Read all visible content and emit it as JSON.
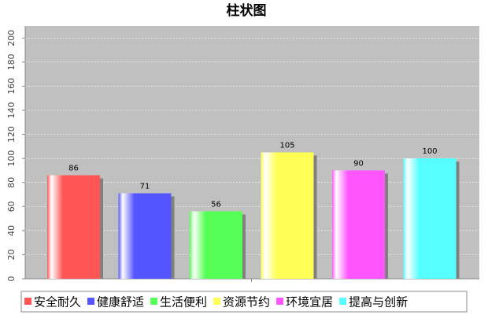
{
  "chart_data": {
    "type": "bar",
    "title": "柱状图",
    "categories": [
      null
    ],
    "series": [
      {
        "name": "安全耐久",
        "color": "#ff5555",
        "values": [
          86
        ]
      },
      {
        "name": "健康舒适",
        "color": "#5555ff",
        "values": [
          71
        ]
      },
      {
        "name": "生活便利",
        "color": "#55ff55",
        "values": [
          56
        ]
      },
      {
        "name": "资源节约",
        "color": "#ffff55",
        "values": [
          105
        ]
      },
      {
        "name": "环境宜居",
        "color": "#ff55ff",
        "values": [
          90
        ]
      },
      {
        "name": "提高与创新",
        "color": "#55ffff",
        "values": [
          100
        ]
      }
    ],
    "ylim": [
      0,
      210
    ],
    "yticks": [
      0,
      20,
      40,
      60,
      80,
      100,
      120,
      140,
      160,
      180,
      200
    ],
    "grid": true
  }
}
